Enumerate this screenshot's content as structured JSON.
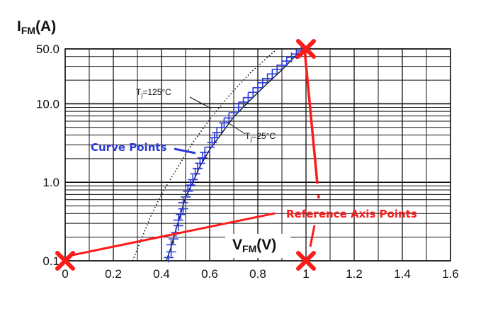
{
  "chart_data": {
    "type": "scatter",
    "y_scale": "log",
    "xlim": [
      0,
      1.6
    ],
    "ylim": [
      0.1,
      50
    ],
    "grid": true,
    "x_ticks": [
      0,
      0.2,
      0.4,
      0.6,
      0.8,
      1.0,
      1.2,
      1.4,
      1.6
    ],
    "x_tick_labels": [
      "0",
      "0.2",
      "0.4",
      "0.6",
      "0.8",
      "1",
      "1.2",
      "1.4",
      "1.6"
    ],
    "y_ticks": [
      0.1,
      1.0,
      10.0,
      50.0
    ],
    "y_tick_labels": [
      "0.1",
      "1.0",
      "10.0",
      "50.0"
    ],
    "ylabel": {
      "main": "I",
      "sub": "FM",
      "unit": "(A)"
    },
    "xlabel": {
      "main": "V",
      "sub": "FM",
      "unit": "(V)"
    },
    "curves": [
      {
        "label_main": "T",
        "label_sub": "j",
        "label_rest": "=125°C",
        "style": "dotted",
        "x": [
          0.28,
          0.32,
          0.36,
          0.41,
          0.47,
          0.53,
          0.6,
          0.68,
          0.77,
          0.88
        ],
        "y": [
          0.1,
          0.2,
          0.4,
          0.8,
          1.6,
          3.2,
          6.3,
          12.6,
          25,
          50
        ]
      },
      {
        "label_main": "T",
        "label_sub": "j",
        "label_rest": "=25°C",
        "style": "solid",
        "x": [
          0.42,
          0.44,
          0.46,
          0.48,
          0.5,
          0.53,
          0.56,
          0.6,
          0.65,
          0.7,
          0.76,
          0.83,
          0.9,
          0.97
        ],
        "y": [
          0.1,
          0.15,
          0.25,
          0.4,
          0.65,
          1.0,
          1.6,
          2.6,
          4.2,
          6.8,
          10.5,
          17,
          27,
          45
        ]
      }
    ],
    "curve_point_series": {
      "color": "#2a3bd8",
      "x": [
        0.43,
        0.44,
        0.44,
        0.45,
        0.46,
        0.47,
        0.47,
        0.48,
        0.49,
        0.49,
        0.5,
        0.51,
        0.52,
        0.53,
        0.54,
        0.55,
        0.56,
        0.57,
        0.58,
        0.6,
        0.61,
        0.62,
        0.63,
        0.65,
        0.66,
        0.68,
        0.7,
        0.72,
        0.74,
        0.76,
        0.78,
        0.8,
        0.82,
        0.84,
        0.86,
        0.88,
        0.9,
        0.92,
        0.94,
        0.96,
        0.98
      ],
      "y": [
        0.11,
        0.13,
        0.16,
        0.19,
        0.23,
        0.28,
        0.33,
        0.39,
        0.46,
        0.55,
        0.65,
        0.77,
        0.92,
        1.08,
        1.28,
        1.5,
        1.75,
        2.05,
        2.4,
        2.8,
        3.2,
        3.7,
        4.3,
        5.0,
        5.7,
        6.6,
        7.7,
        9.0,
        10.5,
        12.0,
        14.0,
        16.0,
        18.5,
        21.0,
        24.0,
        27.5,
        31.0,
        35.0,
        39.0,
        43.0,
        47.0
      ]
    },
    "reference_axis_points": {
      "color": "#ff1a1a",
      "points": [
        {
          "x": 0,
          "y": 0.1
        },
        {
          "x": 1.0,
          "y": 0.1
        },
        {
          "x": 1.0,
          "y": 50
        }
      ]
    },
    "annotations": {
      "curve_points": "Curve Points",
      "reference_axis_points": "Reference Axis Points"
    }
  }
}
